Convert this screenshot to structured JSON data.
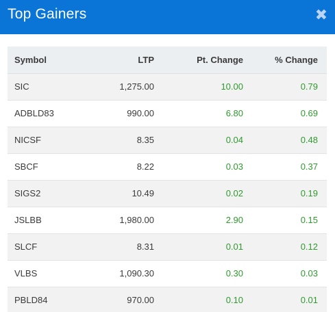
{
  "modal": {
    "title": "Top Gainers",
    "close_label": "✖"
  },
  "table": {
    "headers": {
      "symbol": "Symbol",
      "ltp": "LTP",
      "pt_change": "Pt. Change",
      "pct_change": "% Change"
    },
    "rows": [
      {
        "symbol": "SIC",
        "ltp": "1,275.00",
        "pt_change": "10.00",
        "pct_change": "0.79"
      },
      {
        "symbol": "ADBLD83",
        "ltp": "990.00",
        "pt_change": "6.80",
        "pct_change": "0.69"
      },
      {
        "symbol": "NICSF",
        "ltp": "8.35",
        "pt_change": "0.04",
        "pct_change": "0.48"
      },
      {
        "symbol": "SBCF",
        "ltp": "8.22",
        "pt_change": "0.03",
        "pct_change": "0.37"
      },
      {
        "symbol": "SIGS2",
        "ltp": "10.49",
        "pt_change": "0.02",
        "pct_change": "0.19"
      },
      {
        "symbol": "JSLBB",
        "ltp": "1,980.00",
        "pt_change": "2.90",
        "pct_change": "0.15"
      },
      {
        "symbol": "SLCF",
        "ltp": "8.31",
        "pt_change": "0.01",
        "pct_change": "0.12"
      },
      {
        "symbol": "VLBS",
        "ltp": "1,090.30",
        "pt_change": "0.30",
        "pct_change": "0.03"
      },
      {
        "symbol": "PBLD84",
        "ltp": "970.00",
        "pt_change": "0.10",
        "pct_change": "0.01"
      }
    ]
  },
  "colors": {
    "header_bg": "#0a75d6",
    "gain_green": "#2e9a2e",
    "row_alt": "#f2f2f2"
  }
}
